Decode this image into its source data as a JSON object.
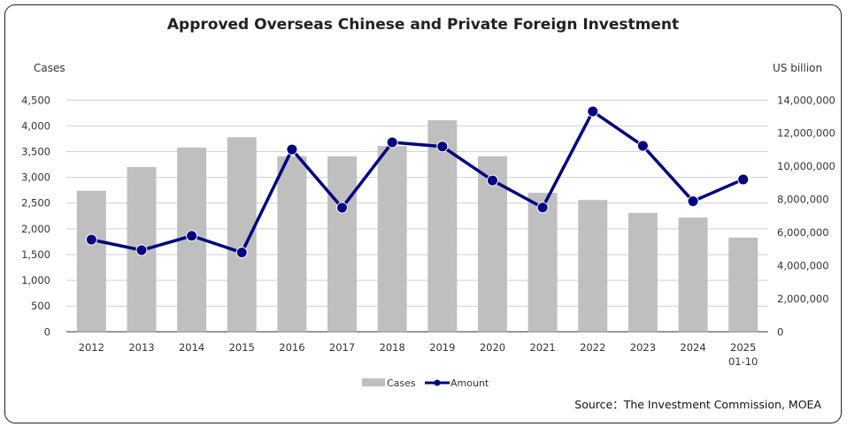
{
  "chart_data": {
    "type": "bar+line",
    "title": "Approved Overseas Chinese and Private Foreign Investment",
    "categories": [
      "2012",
      "2013",
      "2014",
      "2015",
      "2016",
      "2017",
      "2018",
      "2019",
      "2020",
      "2021",
      "2022",
      "2023",
      "2024",
      "2025\n01-10"
    ],
    "y_left": {
      "label": "Cases",
      "range": [
        0,
        4500
      ],
      "ticks": [
        "0",
        "500",
        "1,000",
        "1,500",
        "2,000",
        "2,500",
        "3,000",
        "3,500",
        "4,000",
        "4,500"
      ]
    },
    "y_right": {
      "label": "US billion",
      "range": [
        0,
        14000000
      ],
      "ticks": [
        "0",
        "2,000,000",
        "4,000,000",
        "6,000,000",
        "8,000,000",
        "10,000,000",
        "12,000,000",
        "14,000,000"
      ]
    },
    "grid": true,
    "legend_position": "bottom",
    "series": [
      {
        "name": "Cases",
        "type": "bar",
        "axis": "left",
        "color": "#bfbfbf",
        "values": [
          2740,
          3200,
          3580,
          3780,
          3410,
          3410,
          3610,
          4110,
          3410,
          2700,
          2560,
          2310,
          2220,
          1830
        ]
      },
      {
        "name": "Amount",
        "type": "line",
        "axis": "right",
        "color": "#000080",
        "values": [
          5570000,
          4930000,
          5800000,
          4790000,
          11020000,
          7500000,
          11450000,
          11200000,
          9150000,
          7510000,
          13320000,
          11240000,
          7890000,
          9210000
        ]
      }
    ],
    "source": "Source：The Investment Commission, MOEA"
  }
}
